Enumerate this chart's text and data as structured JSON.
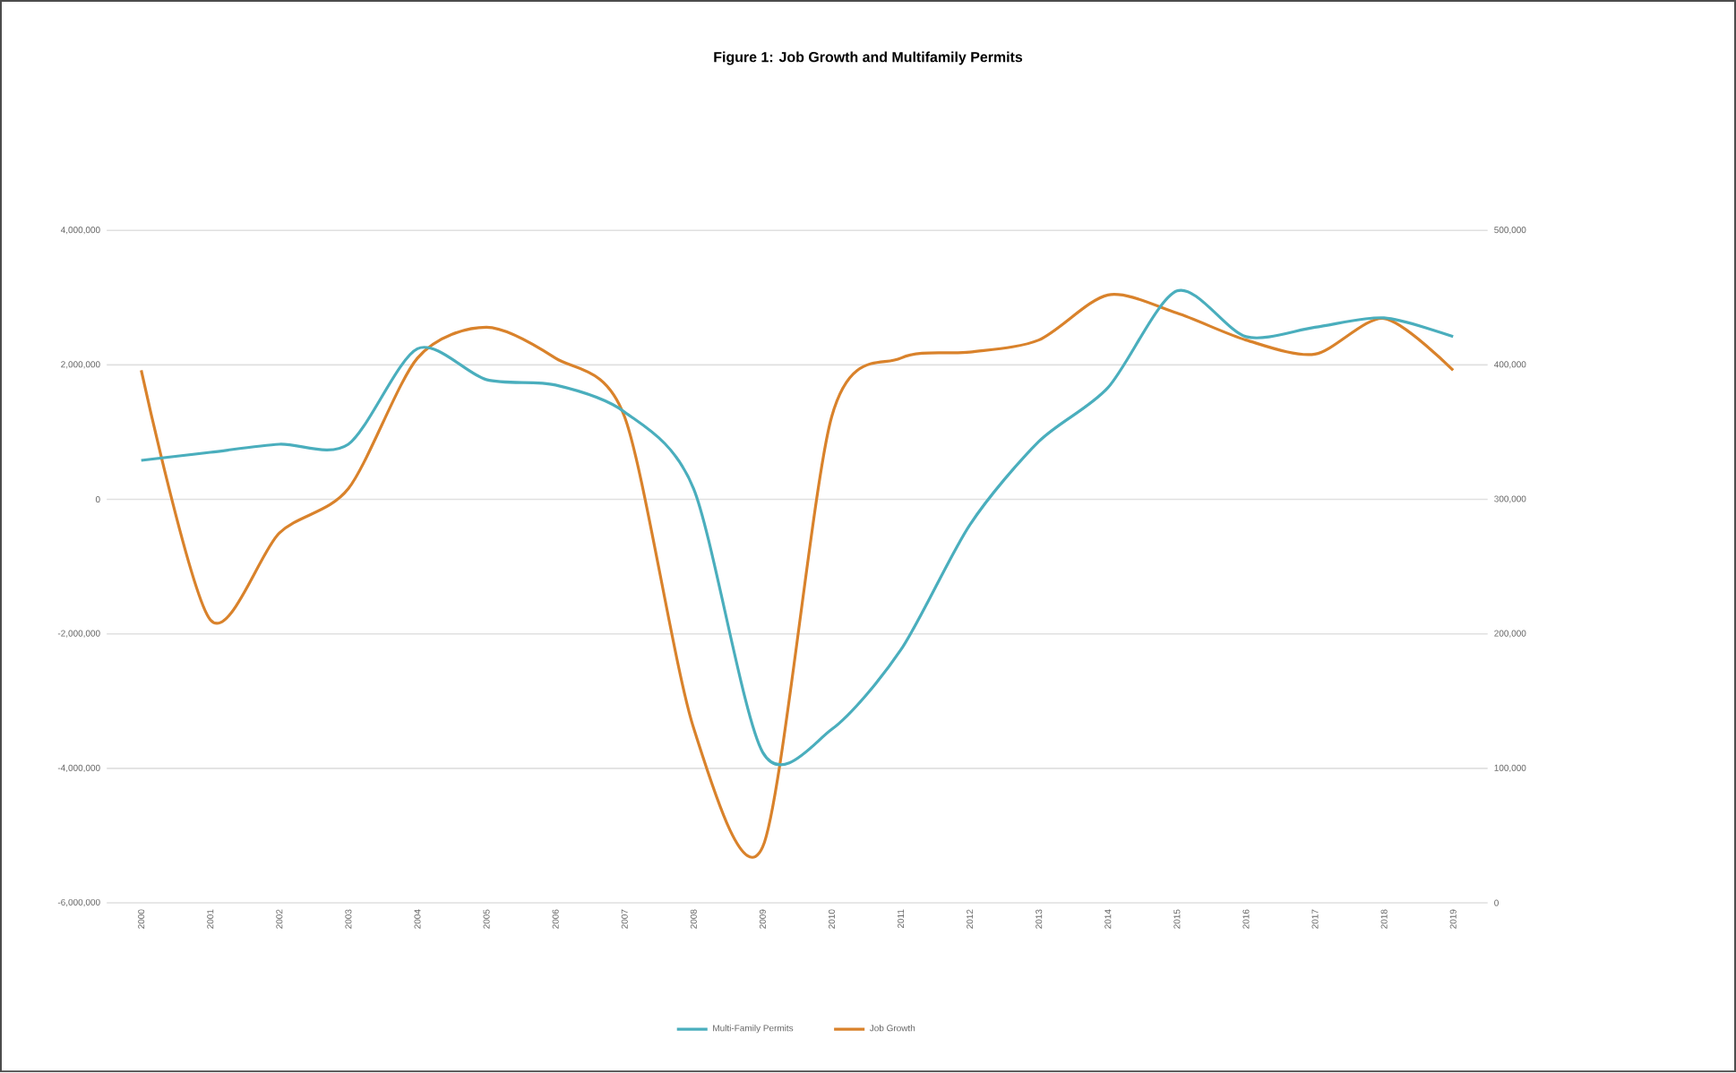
{
  "chart_data": {
    "type": "line",
    "title": "Figure 1: Job Growth and Multifamily Permits",
    "categories": [
      "2000",
      "2001",
      "2002",
      "2003",
      "2004",
      "2005",
      "2006",
      "2007",
      "2008",
      "2009",
      "2010",
      "2011",
      "2012",
      "2013",
      "2014",
      "2015",
      "2016",
      "2017",
      "2018",
      "2019"
    ],
    "series": [
      {
        "name": "Multi-Family Permits",
        "color": "#4aaebd",
        "axis": "y2",
        "values": [
          329000,
          335000,
          341000,
          341000,
          412000,
          389000,
          385000,
          365000,
          308000,
          112000,
          129000,
          188000,
          281000,
          343000,
          383000,
          455000,
          421000,
          428000,
          435000,
          421000
        ]
      },
      {
        "name": "Job Growth",
        "color": "#d9822b",
        "values": [
          1920000,
          -1790000,
          -500000,
          160000,
          2100000,
          2560000,
          2100000,
          1230000,
          -3400000,
          -5170000,
          1230000,
          2100000,
          2190000,
          2370000,
          3040000,
          2770000,
          2370000,
          2160000,
          2690000,
          1920000
        ]
      }
    ],
    "ylim": [
      -6000000,
      4000000
    ],
    "yticks": [
      {
        "value": -6000000,
        "label": "-6,000,000"
      },
      {
        "value": -4000000,
        "label": "-4,000,000"
      },
      {
        "value": -2000000,
        "label": "-2,000,000"
      },
      0,
      {
        "value": 2000000,
        "label": "2,000,000"
      },
      {
        "value": 4000000,
        "label": "4,000,000"
      }
    ],
    "y2lim": [
      0,
      500000
    ],
    "y2ticks": [
      0,
      {
        "value": 100000,
        "label": "100,000"
      },
      {
        "value": 200000,
        "label": "200,000"
      },
      {
        "value": 300000,
        "label": "300,000"
      },
      {
        "value": 400000,
        "label": "400,000"
      },
      {
        "value": 500000,
        "label": "500,000"
      }
    ],
    "grid": "y",
    "legend": "bottom",
    "line_style": "solid",
    "marker": "none"
  }
}
